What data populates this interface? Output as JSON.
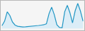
{
  "chart_data": {
    "type": "area",
    "x": [
      0,
      1,
      2,
      3,
      4,
      5,
      6,
      7,
      8,
      9,
      10,
      11,
      12,
      13,
      14,
      15,
      16,
      17,
      18,
      19,
      20,
      21,
      22,
      23,
      24,
      25,
      26,
      27,
      28,
      29,
      30,
      31
    ],
    "values": [
      1500,
      4000,
      9000,
      7000,
      3500,
      1800,
      1200,
      900,
      800,
      900,
      1000,
      1100,
      1200,
      1400,
      1600,
      1800,
      2000,
      2500,
      8000,
      11500,
      7500,
      2000,
      500,
      400,
      9000,
      12500,
      8500,
      3000,
      9500,
      13500,
      9500,
      4000
    ],
    "color": {
      "line": "#2196c4",
      "fill": "#d0eaf8"
    },
    "xlim": [
      -0.5,
      31.5
    ],
    "ylim": [
      -1000,
      15000
    ],
    "grid": false,
    "tick_labels": false
  }
}
